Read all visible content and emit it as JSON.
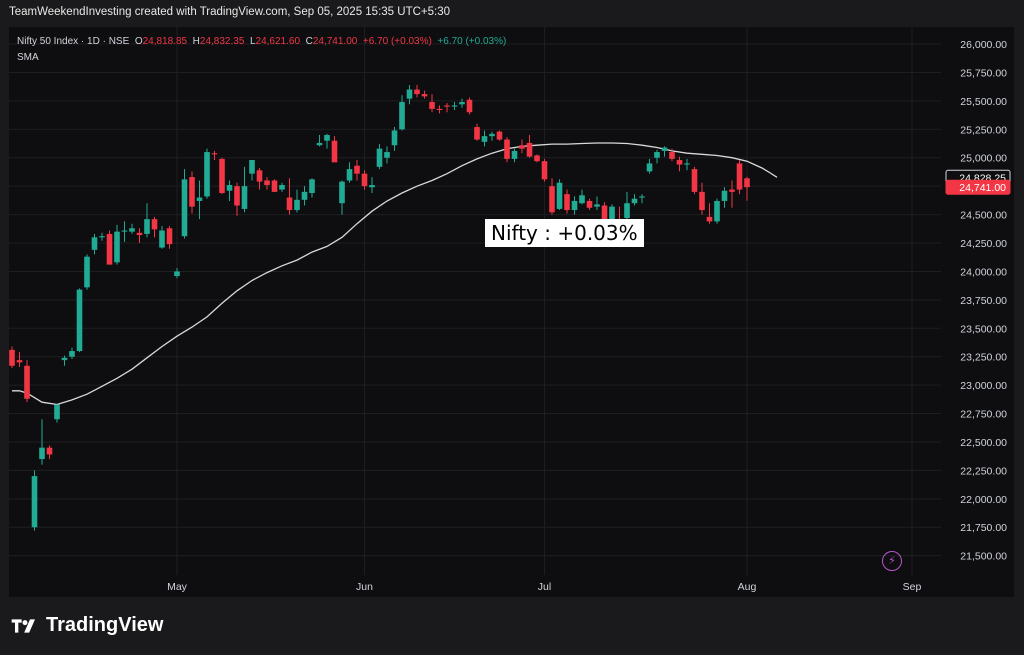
{
  "header": {
    "title": "TeamWeekendInvesting created with TradingView.com, Sep 05, 2025 15:35 UTC+5:30"
  },
  "legend": {
    "symbol": "Nifty 50 Index · 1D · NSE",
    "o_label": "O",
    "o": "24,818.85",
    "h_label": "H",
    "h": "24,832.35",
    "l_label": "L",
    "l": "24,621.60",
    "c_label": "C",
    "c": "24,741.00",
    "chg": "+6.70 (+0.03%)",
    "vol_chg": "+6.70 (+0.03%)",
    "indicator": "SMA"
  },
  "annotation": "Nifty : +0.03%",
  "brand": "TradingView",
  "colors": {
    "up": "#22ab94",
    "down": "#f23645",
    "sma": "#d9d9d9",
    "grid": "#1e1e20"
  },
  "chart_data": {
    "type": "candlestick",
    "ylim": [
      21330,
      26150
    ],
    "y_ticks": [
      "26,000.00",
      "25,750.00",
      "25,500.00",
      "25,250.00",
      "25,000.00",
      "24,750.00",
      "24,500.00",
      "24,250.00",
      "24,000.00",
      "23,750.00",
      "23,500.00",
      "23,250.00",
      "23,000.00",
      "22,750.00",
      "22,500.00",
      "22,250.00",
      "22,000.00",
      "21,750.00",
      "21,500.00"
    ],
    "y_tick_values": [
      26000,
      25750,
      25500,
      25250,
      25000,
      24750,
      24500,
      24250,
      24000,
      23750,
      23500,
      23250,
      23000,
      22750,
      22500,
      22250,
      22000,
      21750,
      21500
    ],
    "x_labels": [
      {
        "label": "May",
        "index": 22
      },
      {
        "label": "Jun",
        "index": 47
      },
      {
        "label": "Jul",
        "index": 71
      },
      {
        "label": "Aug",
        "index": 98
      },
      {
        "label": "Sep",
        "index": 120
      }
    ],
    "price_labels": [
      {
        "value": 24828.25,
        "text": "24,828.25",
        "style": "dark"
      },
      {
        "value": 24741.0,
        "text": "24,741.00",
        "style": "red"
      }
    ],
    "candles": [
      [
        23310,
        23340,
        23150,
        23170
      ],
      [
        23220,
        23290,
        23160,
        23200
      ],
      [
        23170,
        23220,
        22850,
        22880
      ],
      [
        21750,
        22250,
        21720,
        22200
      ],
      [
        22350,
        22700,
        22300,
        22450
      ],
      [
        22450,
        22470,
        22350,
        22390
      ],
      [
        22700,
        22830,
        22670,
        22830
      ],
      [
        23220,
        23260,
        23170,
        23240
      ],
      [
        23250,
        23330,
        23230,
        23300
      ],
      [
        23300,
        23850,
        23290,
        23840
      ],
      [
        23860,
        24150,
        23840,
        24130
      ],
      [
        24190,
        24330,
        24150,
        24300
      ],
      [
        24300,
        24340,
        24270,
        24310
      ],
      [
        24330,
        24360,
        24060,
        24060
      ],
      [
        24080,
        24410,
        24060,
        24350
      ],
      [
        24350,
        24440,
        24260,
        24360
      ],
      [
        24350,
        24420,
        24330,
        24380
      ],
      [
        24340,
        24380,
        24250,
        24320
      ],
      [
        24330,
        24600,
        24300,
        24460
      ],
      [
        24460,
        24480,
        24300,
        24370
      ],
      [
        24210,
        24400,
        24200,
        24360
      ],
      [
        24380,
        24400,
        24200,
        24240
      ],
      [
        23960,
        24030,
        23940,
        24000
      ],
      [
        24310,
        24900,
        24290,
        24810
      ],
      [
        24830,
        24880,
        24510,
        24570
      ],
      [
        24620,
        24800,
        24460,
        24650
      ],
      [
        24660,
        25080,
        24640,
        25050
      ],
      [
        25040,
        25060,
        24980,
        25030
      ],
      [
        24990,
        25000,
        24680,
        24690
      ],
      [
        24710,
        24800,
        24620,
        24760
      ],
      [
        24750,
        24780,
        24490,
        24580
      ],
      [
        24550,
        24920,
        24520,
        24750
      ],
      [
        24860,
        24970,
        24800,
        24980
      ],
      [
        24890,
        24910,
        24720,
        24790
      ],
      [
        24800,
        24830,
        24720,
        24760
      ],
      [
        24800,
        24810,
        24700,
        24700
      ],
      [
        24720,
        24780,
        24700,
        24760
      ],
      [
        24650,
        24820,
        24500,
        24540
      ],
      [
        24540,
        24720,
        24520,
        24630
      ],
      [
        24630,
        24750,
        24580,
        24700
      ],
      [
        24690,
        24820,
        24650,
        24810
      ],
      [
        25110,
        25200,
        25100,
        25130
      ],
      [
        25150,
        25210,
        25080,
        25200
      ],
      [
        25150,
        25190,
        24960,
        24960
      ],
      [
        24600,
        24800,
        24500,
        24790
      ],
      [
        24800,
        24960,
        24780,
        24900
      ],
      [
        24930,
        24980,
        24800,
        24860
      ],
      [
        24860,
        24890,
        24720,
        24750
      ],
      [
        24740,
        24830,
        24690,
        24760
      ],
      [
        24920,
        25120,
        24900,
        25080
      ],
      [
        25000,
        25100,
        24950,
        25050
      ],
      [
        25110,
        25270,
        25060,
        25240
      ],
      [
        25250,
        25550,
        25240,
        25490
      ],
      [
        25520,
        25640,
        25470,
        25600
      ],
      [
        25600,
        25640,
        25530,
        25560
      ],
      [
        25560,
        25590,
        25520,
        25540
      ],
      [
        25490,
        25560,
        25400,
        25430
      ],
      [
        25430,
        25460,
        25390,
        25420
      ],
      [
        25460,
        25480,
        25400,
        25450
      ],
      [
        25450,
        25490,
        25420,
        25460
      ],
      [
        25470,
        25520,
        25440,
        25490
      ],
      [
        25510,
        25530,
        25380,
        25400
      ],
      [
        25270,
        25300,
        25150,
        25160
      ],
      [
        25140,
        25240,
        25100,
        25190
      ],
      [
        25190,
        25230,
        25150,
        25210
      ],
      [
        25230,
        25240,
        25150,
        25160
      ],
      [
        25160,
        25180,
        24960,
        24990
      ],
      [
        24990,
        25080,
        24960,
        25060
      ],
      [
        25110,
        25160,
        25040,
        25080
      ],
      [
        25130,
        25200,
        25000,
        25010
      ],
      [
        25020,
        25030,
        24960,
        24970
      ],
      [
        24970,
        24990,
        24790,
        24810
      ],
      [
        24750,
        24820,
        24500,
        24520
      ],
      [
        24550,
        24810,
        24540,
        24780
      ],
      [
        24680,
        24720,
        24510,
        24540
      ],
      [
        24540,
        24660,
        24500,
        24620
      ],
      [
        24600,
        24720,
        24590,
        24670
      ],
      [
        24620,
        24640,
        24540,
        24560
      ],
      [
        24570,
        24660,
        24540,
        24590
      ],
      [
        24580,
        24610,
        24390,
        24460
      ],
      [
        24360,
        24590,
        24330,
        24570
      ],
      [
        24450,
        24570,
        24350,
        24420
      ],
      [
        24470,
        24700,
        24450,
        24600
      ],
      [
        24600,
        24680,
        24580,
        24640
      ],
      [
        24650,
        24680,
        24600,
        24660
      ],
      [
        24880,
        24990,
        24860,
        24950
      ],
      [
        25000,
        25070,
        24950,
        25050
      ],
      [
        25060,
        25100,
        25010,
        25090
      ],
      [
        25050,
        25080,
        24970,
        24990
      ],
      [
        24980,
        25010,
        24880,
        24940
      ],
      [
        24940,
        24990,
        24890,
        24950
      ],
      [
        24900,
        24920,
        24680,
        24700
      ],
      [
        24700,
        24780,
        24500,
        24540
      ],
      [
        24480,
        24600,
        24420,
        24440
      ],
      [
        24440,
        24640,
        24420,
        24620
      ],
      [
        24620,
        24740,
        24560,
        24710
      ],
      [
        24720,
        24800,
        24560,
        24700
      ],
      [
        24950,
        24980,
        24680,
        24720
      ],
      [
        24818.85,
        24832.35,
        24621.6,
        24741
      ]
    ],
    "sma": [
      [
        0,
        22950
      ],
      [
        1,
        22950
      ],
      [
        2,
        22930
      ],
      [
        4,
        22850
      ],
      [
        6,
        22830
      ],
      [
        8,
        22870
      ],
      [
        10,
        22920
      ],
      [
        12,
        22990
      ],
      [
        14,
        23060
      ],
      [
        16,
        23140
      ],
      [
        18,
        23240
      ],
      [
        20,
        23340
      ],
      [
        22,
        23430
      ],
      [
        24,
        23510
      ],
      [
        26,
        23600
      ],
      [
        28,
        23720
      ],
      [
        30,
        23830
      ],
      [
        32,
        23920
      ],
      [
        34,
        23990
      ],
      [
        36,
        24050
      ],
      [
        38,
        24100
      ],
      [
        40,
        24170
      ],
      [
        42,
        24220
      ],
      [
        44,
        24300
      ],
      [
        46,
        24420
      ],
      [
        48,
        24530
      ],
      [
        50,
        24620
      ],
      [
        52,
        24690
      ],
      [
        54,
        24750
      ],
      [
        56,
        24800
      ],
      [
        58,
        24860
      ],
      [
        60,
        24930
      ],
      [
        62,
        24990
      ],
      [
        64,
        25040
      ],
      [
        66,
        25080
      ],
      [
        68,
        25100
      ],
      [
        70,
        25110
      ],
      [
        72,
        25120
      ],
      [
        74,
        25120
      ],
      [
        76,
        25125
      ],
      [
        78,
        25130
      ],
      [
        80,
        25130
      ],
      [
        82,
        25125
      ],
      [
        84,
        25110
      ],
      [
        86,
        25090
      ],
      [
        88,
        25060
      ],
      [
        90,
        25040
      ],
      [
        92,
        25030
      ],
      [
        94,
        25020
      ],
      [
        96,
        25000
      ],
      [
        98,
        24970
      ],
      [
        99,
        24940
      ],
      [
        100,
        24910
      ],
      [
        101,
        24870
      ],
      [
        102,
        24828.25
      ]
    ]
  }
}
